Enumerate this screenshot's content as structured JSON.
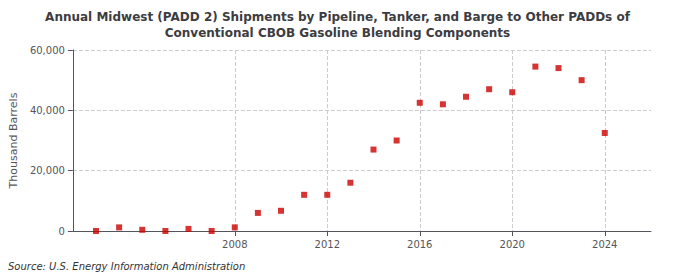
{
  "chart_data": {
    "type": "scatter",
    "title": "Annual Midwest (PADD 2) Shipments by Pipeline, Tanker, and Barge to Other PADDs of\nConventional CBOB Gasoline Blending Components",
    "ylabel": "Thousand Barrels",
    "annotation": "Source: U.S. Energy Information Administration",
    "x": [
      2002,
      2003,
      2004,
      2005,
      2006,
      2007,
      2008,
      2009,
      2010,
      2011,
      2012,
      2013,
      2014,
      2015,
      2016,
      2017,
      2018,
      2019,
      2020,
      2021,
      2022,
      2023,
      2024
    ],
    "values": [
      0,
      1200,
      400,
      0,
      700,
      0,
      1200,
      6000,
      6700,
      12000,
      12000,
      16000,
      27000,
      30000,
      42500,
      42000,
      44500,
      47000,
      46000,
      54500,
      54000,
      50000,
      32500
    ],
    "color": "#cc0000",
    "marker": "square",
    "xlim": [
      2001,
      2026
    ],
    "xticks": [
      2008,
      2012,
      2016,
      2020,
      2024
    ],
    "ylim": [
      0,
      60000
    ],
    "yticks": [
      0,
      {
        "value": 20000,
        "label": "20,000"
      },
      {
        "value": 40000,
        "label": "40,000"
      },
      {
        "value": 60000,
        "label": "60,000"
      }
    ],
    "grid": true
  }
}
